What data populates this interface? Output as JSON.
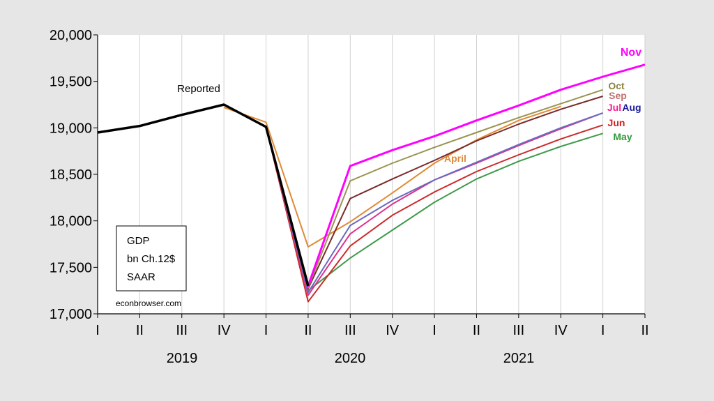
{
  "chart_data": {
    "type": "line",
    "x": [
      "2019Q1",
      "2019Q2",
      "2019Q3",
      "2019Q4",
      "2020Q1",
      "2020Q2",
      "2020Q3",
      "2020Q4",
      "2021Q1",
      "2021Q2",
      "2021Q3",
      "2021Q4",
      "2022Q1",
      "2022Q2"
    ],
    "x_tick_labels": [
      "I",
      "II",
      "III",
      "IV",
      "I",
      "II",
      "III",
      "IV",
      "I",
      "II",
      "III",
      "IV",
      "I",
      "II"
    ],
    "year_labels": [
      "2019",
      "2020",
      "2021"
    ],
    "y_ticks": [
      "17,000",
      "17,500",
      "18,000",
      "18,500",
      "19,000",
      "19,500",
      "20,000"
    ],
    "ylim": [
      17000,
      20000
    ],
    "grid": "vertical only",
    "legend_box": {
      "lines": [
        "GDP",
        "bn Ch.12$",
        "SAAR"
      ]
    },
    "credit": "econbrowser.com",
    "series": [
      {
        "name": "Reported",
        "color": "#000000",
        "width": 3.5,
        "values": [
          18950,
          19020,
          19140,
          19250,
          19010,
          17300,
          null,
          null,
          null,
          null,
          null,
          null,
          null,
          null
        ]
      },
      {
        "name": "April",
        "color": "#e08a36",
        "width": 2,
        "values": [
          null,
          null,
          null,
          19220,
          19060,
          17720,
          17990,
          18300,
          18620,
          18870,
          19080,
          19230,
          null,
          null
        ]
      },
      {
        "name": "May",
        "color": "#3f9a4a",
        "width": 2,
        "values": [
          null,
          null,
          null,
          null,
          19010,
          17250,
          17600,
          17900,
          18200,
          18450,
          18640,
          18800,
          18940,
          null
        ]
      },
      {
        "name": "Jun",
        "color": "#cc2a2a",
        "width": 2,
        "values": [
          null,
          null,
          null,
          null,
          19010,
          17130,
          17730,
          18060,
          18310,
          18530,
          18710,
          18880,
          19030,
          null
        ]
      },
      {
        "name": "Jul",
        "color": "#e0308a",
        "width": 2,
        "values": [
          null,
          null,
          null,
          null,
          19010,
          17200,
          17860,
          18180,
          18440,
          18620,
          18810,
          18990,
          19160,
          null
        ]
      },
      {
        "name": "Aug",
        "color": "#6a6ac0",
        "width": 2,
        "values": [
          null,
          null,
          null,
          null,
          19010,
          17230,
          17950,
          18220,
          18440,
          18630,
          18820,
          19000,
          19160,
          null
        ]
      },
      {
        "name": "Sep",
        "color": "#7a2a2a",
        "width": 2,
        "values": [
          null,
          null,
          null,
          null,
          19010,
          17270,
          18240,
          18450,
          18650,
          18860,
          19040,
          19200,
          19340,
          null
        ]
      },
      {
        "name": "Oct",
        "color": "#9a9450",
        "width": 2,
        "values": [
          null,
          null,
          null,
          null,
          19010,
          17280,
          18430,
          18620,
          18790,
          18950,
          19110,
          19260,
          19410,
          null
        ]
      },
      {
        "name": "Nov",
        "color": "#ff00ff",
        "width": 3,
        "values": [
          null,
          null,
          null,
          null,
          19010,
          17300,
          18590,
          18760,
          18910,
          19080,
          19240,
          19410,
          19550,
          19680
        ]
      }
    ],
    "label_colors": {
      "Nov": "#ff00ff",
      "Oct": "#8a8440",
      "Sep": "#c07070",
      "Jul": "#ff1493",
      "Aug": "#1a1a9a",
      "Jun": "#d02020",
      "May": "#2f9a3a",
      "April": "#e08a36",
      "Reported": "#000000"
    }
  }
}
